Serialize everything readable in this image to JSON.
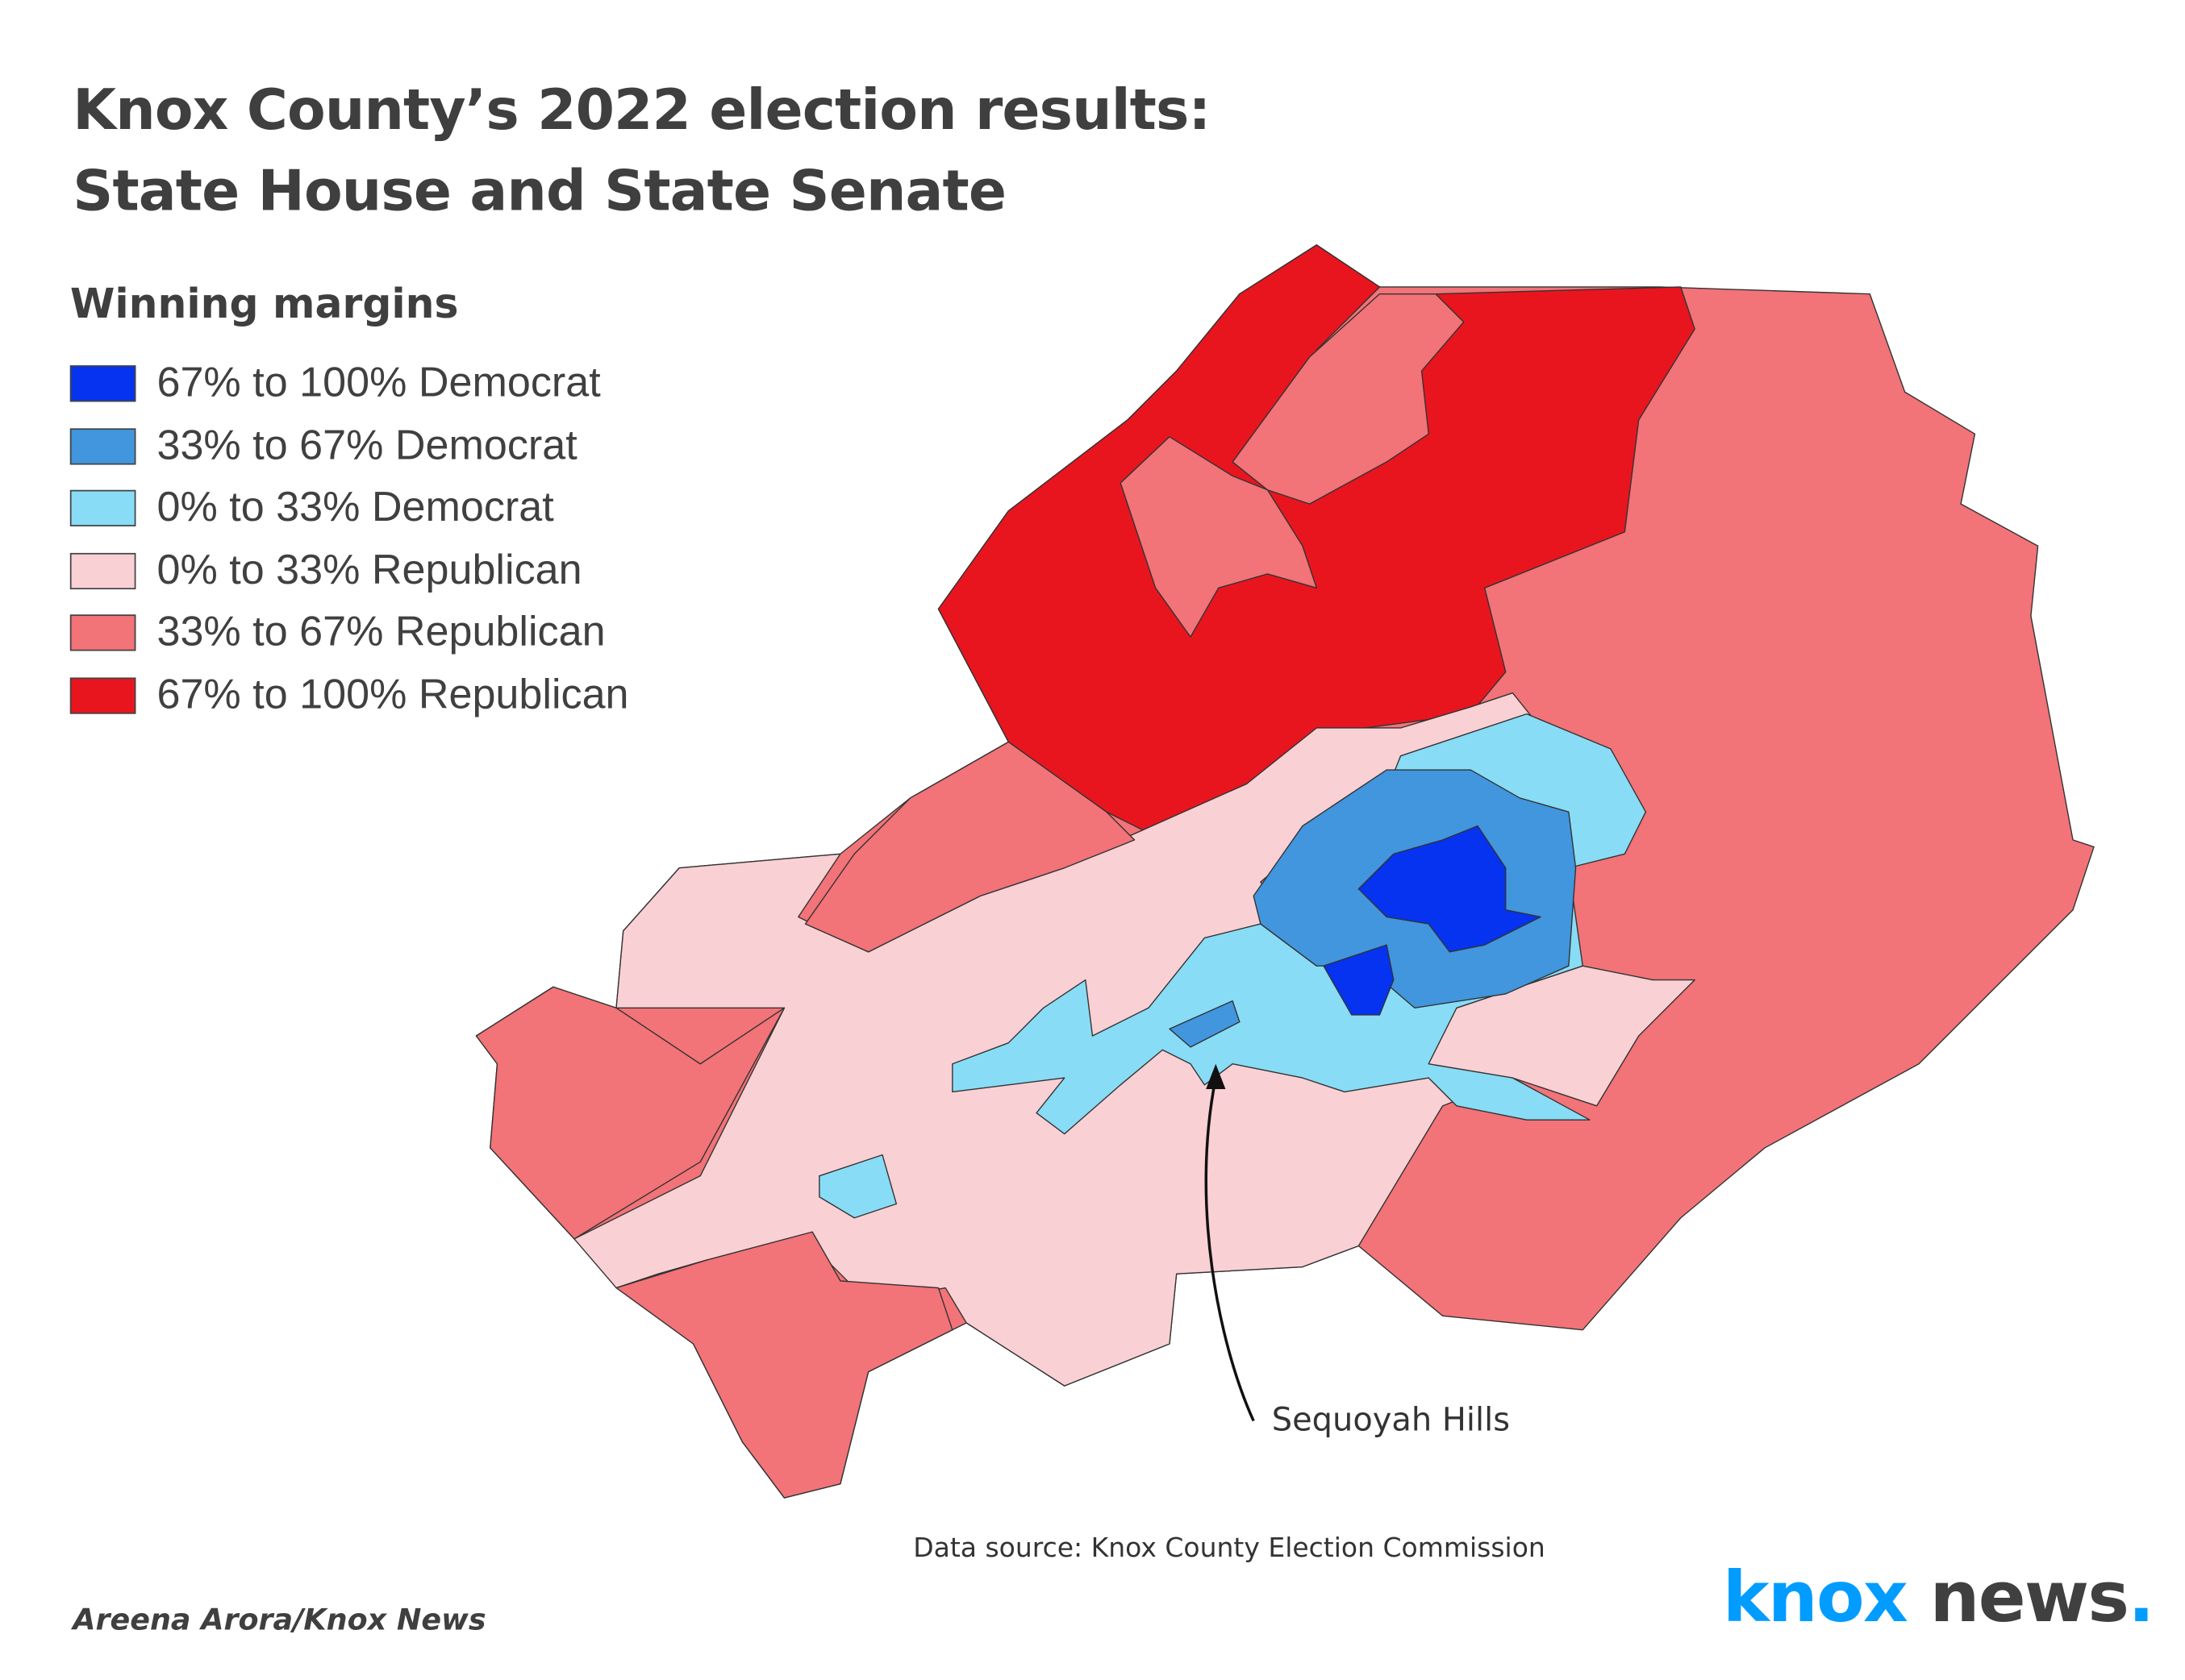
{
  "title_line1": "Knox County’s 2022 election results:",
  "title_line2": "State House and State Senate",
  "legend": {
    "title": "Winning margins",
    "items": [
      {
        "label": "67% to 100% Democrat",
        "color": "#0533f0"
      },
      {
        "label": "33% to 67% Democrat",
        "color": "#4196de"
      },
      {
        "label": "0% to 33% Democrat",
        "color": "#88dcf6"
      },
      {
        "label": "0% to 33% Republican",
        "color": "#f9d0d4"
      },
      {
        "label": "33% to 67% Republican",
        "color": "#f27378"
      },
      {
        "label": "67% to 100% Republican",
        "color": "#e8151f"
      }
    ]
  },
  "annotation": "Sequoyah Hills",
  "source": "Data source: Knox County Election Commission",
  "credit": "Areena Arora/Knox News",
  "logo": {
    "part1": "knox",
    "part2": "news",
    "dot": ".",
    "colors": {
      "knox": "#009cff",
      "news": "#404040"
    }
  }
}
